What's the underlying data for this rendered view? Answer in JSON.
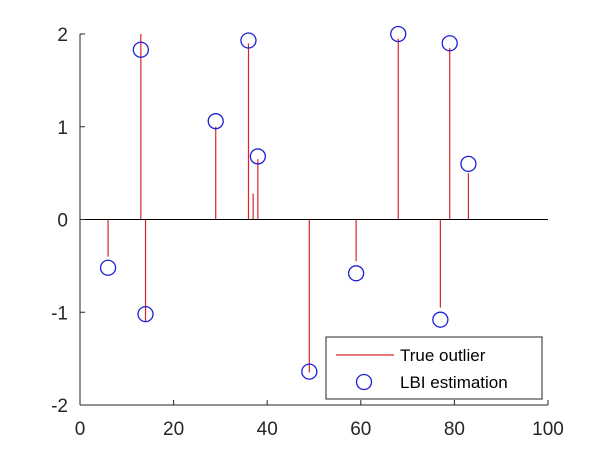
{
  "chart_data": {
    "type": "stem",
    "xlim": [
      0,
      100
    ],
    "ylim": [
      -2,
      2
    ],
    "xticks": [
      0,
      20,
      40,
      60,
      80,
      100
    ],
    "yticks": [
      -2,
      -1,
      0,
      1,
      2
    ],
    "grid": false,
    "legend_placement": "bottom-right",
    "colors": {
      "true_outlier": "#d62728",
      "estimation": "#1f1fd6",
      "axis": "#262626"
    },
    "series": [
      {
        "name": "True outlier",
        "style": "stem",
        "x": [
          6,
          13,
          14,
          29,
          36,
          37,
          38,
          49,
          59,
          68,
          77,
          79,
          83
        ],
        "y": [
          -0.4,
          2.0,
          -1.1,
          1.0,
          1.9,
          0.28,
          0.65,
          -1.65,
          -0.45,
          1.95,
          -0.95,
          1.85,
          0.5
        ]
      },
      {
        "name": "LBI estimation",
        "style": "circle",
        "x": [
          6,
          13,
          14,
          29,
          36,
          38,
          49,
          59,
          68,
          77,
          79,
          83
        ],
        "y": [
          -0.52,
          1.83,
          -1.02,
          1.06,
          1.93,
          0.68,
          -1.64,
          -0.58,
          2.0,
          -1.08,
          1.9,
          0.6
        ]
      }
    ]
  }
}
